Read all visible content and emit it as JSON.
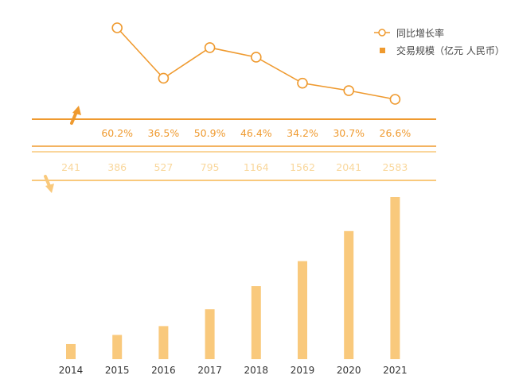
{
  "chart_data": {
    "type": "bar",
    "categories": [
      "2014",
      "2015",
      "2016",
      "2017",
      "2018",
      "2019",
      "2020",
      "2021"
    ],
    "series": [
      {
        "name": "交易规模（亿元 人民币）",
        "type": "bar",
        "values": [
          241,
          386,
          527,
          795,
          1164,
          1562,
          2041,
          2583
        ],
        "value_labels": [
          "241",
          "386",
          "527",
          "795",
          "1164",
          "1562",
          "2041",
          "2583"
        ]
      },
      {
        "name": "同比增长率",
        "type": "line",
        "values": [
          null,
          60.2,
          36.5,
          50.9,
          46.4,
          34.2,
          30.7,
          26.6
        ],
        "value_labels": [
          "",
          "60.2%",
          "36.5%",
          "50.9%",
          "46.4%",
          "34.2%",
          "30.7%",
          "26.6%"
        ]
      }
    ],
    "legend_position": "top-right",
    "grid": false,
    "colors": {
      "bar": "#f9c97c",
      "bar_label": "#f9d79c",
      "line": "#ef9a2f",
      "growth_label": "#ef9a2f",
      "axis_text": "#333333",
      "legend_text": "#444444"
    }
  }
}
